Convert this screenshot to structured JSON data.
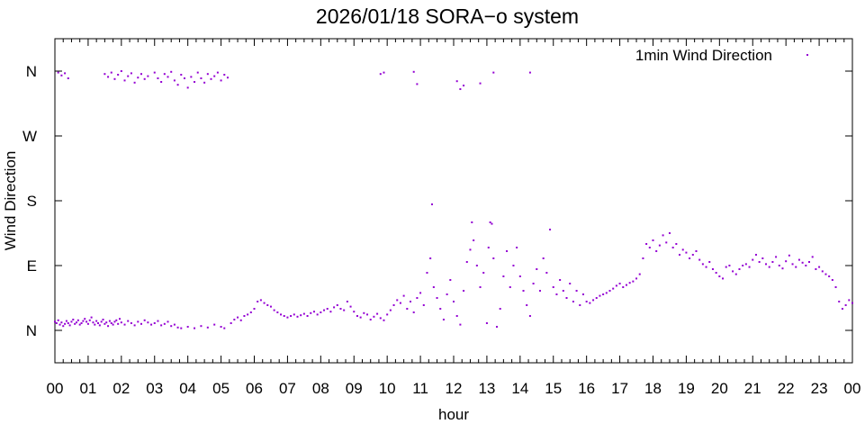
{
  "chart_data": {
    "type": "scatter",
    "title": "2026/01/18 SORA−o system",
    "xlabel": "hour",
    "ylabel": "Wind Direction",
    "xlim": [
      0,
      24
    ],
    "ylim": [
      -45,
      405
    ],
    "x_ticks": [
      0,
      1,
      2,
      3,
      4,
      5,
      6,
      7,
      8,
      9,
      10,
      11,
      12,
      13,
      14,
      15,
      16,
      17,
      18,
      19,
      20,
      21,
      22,
      23,
      24
    ],
    "x_tick_labels": [
      "00",
      "01",
      "02",
      "03",
      "04",
      "05",
      "06",
      "07",
      "08",
      "09",
      "10",
      "11",
      "12",
      "13",
      "14",
      "15",
      "16",
      "17",
      "18",
      "19",
      "20",
      "21",
      "22",
      "23",
      "00"
    ],
    "y_ticks": [
      0,
      90,
      180,
      270,
      360
    ],
    "y_tick_labels": [
      "N",
      "E",
      "S",
      "W",
      "N"
    ],
    "grid": false,
    "legend_position": "top-right",
    "point_color": "#9400d3",
    "series": [
      {
        "name": "1min Wind Direction",
        "points": [
          [
            0.0,
            12
          ],
          [
            0.05,
            10
          ],
          [
            0.1,
            14
          ],
          [
            0.15,
            8
          ],
          [
            0.2,
            11
          ],
          [
            0.25,
            6
          ],
          [
            0.3,
            9
          ],
          [
            0.35,
            13
          ],
          [
            0.4,
            10
          ],
          [
            0.45,
            7
          ],
          [
            0.5,
            12
          ],
          [
            0.55,
            15
          ],
          [
            0.6,
            9
          ],
          [
            0.65,
            11
          ],
          [
            0.7,
            14
          ],
          [
            0.75,
            8
          ],
          [
            0.8,
            10
          ],
          [
            0.85,
            13
          ],
          [
            0.9,
            16
          ],
          [
            0.95,
            12
          ],
          [
            1.0,
            9
          ],
          [
            1.05,
            14
          ],
          [
            1.1,
            18
          ],
          [
            1.15,
            11
          ],
          [
            1.2,
            8
          ],
          [
            1.25,
            13
          ],
          [
            1.3,
            10
          ],
          [
            1.35,
            7
          ],
          [
            1.4,
            12
          ],
          [
            1.45,
            15
          ],
          [
            1.5,
            9
          ],
          [
            1.55,
            11
          ],
          [
            1.6,
            6
          ],
          [
            1.65,
            13
          ],
          [
            1.7,
            10
          ],
          [
            1.75,
            8
          ],
          [
            1.8,
            12
          ],
          [
            1.85,
            14
          ],
          [
            1.9,
            9
          ],
          [
            1.95,
            16
          ],
          [
            2.0,
            11
          ],
          [
            2.1,
            8
          ],
          [
            2.2,
            13
          ],
          [
            2.3,
            10
          ],
          [
            2.4,
            7
          ],
          [
            2.5,
            12
          ],
          [
            2.6,
            9
          ],
          [
            2.7,
            14
          ],
          [
            2.8,
            11
          ],
          [
            2.9,
            8
          ],
          [
            3.0,
            10
          ],
          [
            3.1,
            13
          ],
          [
            3.2,
            7
          ],
          [
            3.3,
            9
          ],
          [
            3.4,
            12
          ],
          [
            3.5,
            6
          ],
          [
            3.6,
            8
          ],
          [
            3.7,
            4
          ],
          [
            3.8,
            3
          ],
          [
            4.0,
            5
          ],
          [
            4.2,
            3
          ],
          [
            4.4,
            6
          ],
          [
            4.6,
            4
          ],
          [
            4.8,
            8
          ],
          [
            5.0,
            5
          ],
          [
            5.1,
            3
          ],
          [
            0.1,
            358
          ],
          [
            0.2,
            354
          ],
          [
            0.3,
            357
          ],
          [
            0.4,
            350
          ],
          [
            1.5,
            356
          ],
          [
            1.6,
            352
          ],
          [
            1.7,
            358
          ],
          [
            1.8,
            349
          ],
          [
            1.9,
            355
          ],
          [
            2.0,
            360
          ],
          [
            2.1,
            347
          ],
          [
            2.2,
            353
          ],
          [
            2.3,
            357
          ],
          [
            2.4,
            344
          ],
          [
            2.5,
            351
          ],
          [
            2.6,
            356
          ],
          [
            2.7,
            349
          ],
          [
            2.8,
            353
          ],
          [
            3.0,
            358
          ],
          [
            3.1,
            350
          ],
          [
            3.2,
            345
          ],
          [
            3.3,
            356
          ],
          [
            3.4,
            352
          ],
          [
            3.5,
            359
          ],
          [
            3.6,
            347
          ],
          [
            3.7,
            341
          ],
          [
            3.8,
            355
          ],
          [
            3.9,
            350
          ],
          [
            4.0,
            337
          ],
          [
            4.1,
            352
          ],
          [
            4.2,
            345
          ],
          [
            4.3,
            358
          ],
          [
            4.4,
            350
          ],
          [
            4.5,
            344
          ],
          [
            4.6,
            356
          ],
          [
            4.7,
            349
          ],
          [
            4.8,
            353
          ],
          [
            4.9,
            358
          ],
          [
            5.0,
            347
          ],
          [
            5.1,
            355
          ],
          [
            5.2,
            351
          ],
          [
            9.8,
            356
          ],
          [
            9.9,
            358
          ],
          [
            10.8,
            359
          ],
          [
            10.9,
            342
          ],
          [
            12.1,
            346
          ],
          [
            12.2,
            335
          ],
          [
            12.3,
            340
          ],
          [
            12.8,
            343
          ],
          [
            13.2,
            358
          ],
          [
            14.3,
            358
          ],
          [
            5.3,
            10
          ],
          [
            5.4,
            15
          ],
          [
            5.5,
            18
          ],
          [
            5.6,
            14
          ],
          [
            5.7,
            20
          ],
          [
            5.8,
            22
          ],
          [
            5.9,
            25
          ],
          [
            6.0,
            30
          ],
          [
            6.1,
            40
          ],
          [
            6.2,
            42
          ],
          [
            6.3,
            38
          ],
          [
            6.4,
            35
          ],
          [
            6.5,
            33
          ],
          [
            6.6,
            28
          ],
          [
            6.7,
            25
          ],
          [
            6.8,
            22
          ],
          [
            6.9,
            20
          ],
          [
            7.0,
            18
          ],
          [
            7.1,
            20
          ],
          [
            7.2,
            22
          ],
          [
            7.3,
            19
          ],
          [
            7.4,
            21
          ],
          [
            7.5,
            23
          ],
          [
            7.6,
            20
          ],
          [
            7.7,
            24
          ],
          [
            7.8,
            26
          ],
          [
            7.9,
            22
          ],
          [
            8.0,
            25
          ],
          [
            8.1,
            28
          ],
          [
            8.2,
            30
          ],
          [
            8.3,
            26
          ],
          [
            8.4,
            32
          ],
          [
            8.5,
            35
          ],
          [
            8.6,
            30
          ],
          [
            8.7,
            28
          ],
          [
            8.8,
            40
          ],
          [
            8.9,
            33
          ],
          [
            9.0,
            26
          ],
          [
            9.1,
            20
          ],
          [
            9.2,
            18
          ],
          [
            9.3,
            24
          ],
          [
            9.4,
            22
          ],
          [
            9.5,
            15
          ],
          [
            9.6,
            19
          ],
          [
            9.7,
            23
          ],
          [
            9.8,
            17
          ],
          [
            9.9,
            14
          ],
          [
            10.0,
            22
          ],
          [
            10.1,
            28
          ],
          [
            10.2,
            35
          ],
          [
            10.3,
            42
          ],
          [
            10.4,
            38
          ],
          [
            10.5,
            48
          ],
          [
            10.6,
            30
          ],
          [
            10.7,
            40
          ],
          [
            10.8,
            25
          ],
          [
            10.9,
            45
          ],
          [
            11.0,
            52
          ],
          [
            11.1,
            35
          ],
          [
            11.2,
            80
          ],
          [
            11.3,
            100
          ],
          [
            11.35,
            175
          ],
          [
            11.4,
            60
          ],
          [
            11.5,
            45
          ],
          [
            11.6,
            30
          ],
          [
            11.7,
            15
          ],
          [
            11.8,
            50
          ],
          [
            11.9,
            70
          ],
          [
            12.0,
            40
          ],
          [
            12.1,
            20
          ],
          [
            12.2,
            8
          ],
          [
            12.3,
            55
          ],
          [
            12.4,
            95
          ],
          [
            12.5,
            112
          ],
          [
            12.55,
            150
          ],
          [
            12.6,
            125
          ],
          [
            12.7,
            90
          ],
          [
            12.8,
            60
          ],
          [
            12.9,
            80
          ],
          [
            13.0,
            10
          ],
          [
            13.05,
            115
          ],
          [
            13.1,
            150
          ],
          [
            13.15,
            148
          ],
          [
            13.2,
            100
          ],
          [
            13.3,
            5
          ],
          [
            13.4,
            30
          ],
          [
            13.5,
            75
          ],
          [
            13.6,
            110
          ],
          [
            13.7,
            60
          ],
          [
            13.8,
            90
          ],
          [
            13.9,
            115
          ],
          [
            14.0,
            75
          ],
          [
            14.1,
            55
          ],
          [
            14.2,
            35
          ],
          [
            14.3,
            20
          ],
          [
            14.4,
            65
          ],
          [
            14.5,
            85
          ],
          [
            14.6,
            55
          ],
          [
            14.7,
            100
          ],
          [
            14.8,
            80
          ],
          [
            14.9,
            140
          ],
          [
            15.0,
            60
          ],
          [
            15.1,
            50
          ],
          [
            15.2,
            70
          ],
          [
            15.3,
            55
          ],
          [
            15.4,
            45
          ],
          [
            15.5,
            65
          ],
          [
            15.6,
            40
          ],
          [
            15.7,
            55
          ],
          [
            15.8,
            35
          ],
          [
            15.9,
            50
          ],
          [
            16.0,
            40
          ],
          [
            16.1,
            38
          ],
          [
            16.2,
            42
          ],
          [
            16.3,
            45
          ],
          [
            16.4,
            48
          ],
          [
            16.5,
            50
          ],
          [
            16.6,
            52
          ],
          [
            16.7,
            55
          ],
          [
            16.8,
            58
          ],
          [
            16.9,
            62
          ],
          [
            17.0,
            65
          ],
          [
            17.1,
            60
          ],
          [
            17.2,
            63
          ],
          [
            17.3,
            66
          ],
          [
            17.4,
            68
          ],
          [
            17.5,
            72
          ],
          [
            17.6,
            78
          ],
          [
            17.7,
            100
          ],
          [
            17.8,
            120
          ],
          [
            17.9,
            115
          ],
          [
            18.0,
            125
          ],
          [
            18.1,
            110
          ],
          [
            18.2,
            118
          ],
          [
            18.3,
            132
          ],
          [
            18.4,
            122
          ],
          [
            18.5,
            135
          ],
          [
            18.6,
            115
          ],
          [
            18.7,
            120
          ],
          [
            18.8,
            105
          ],
          [
            18.9,
            112
          ],
          [
            19.0,
            108
          ],
          [
            19.1,
            100
          ],
          [
            19.2,
            105
          ],
          [
            19.3,
            110
          ],
          [
            19.4,
            98
          ],
          [
            19.5,
            92
          ],
          [
            19.6,
            88
          ],
          [
            19.7,
            95
          ],
          [
            19.8,
            85
          ],
          [
            19.9,
            80
          ],
          [
            20.0,
            75
          ],
          [
            20.1,
            72
          ],
          [
            20.2,
            88
          ],
          [
            20.3,
            90
          ],
          [
            20.4,
            82
          ],
          [
            20.5,
            78
          ],
          [
            20.6,
            85
          ],
          [
            20.7,
            90
          ],
          [
            20.8,
            92
          ],
          [
            20.9,
            88
          ],
          [
            21.0,
            98
          ],
          [
            21.1,
            105
          ],
          [
            21.2,
            95
          ],
          [
            21.3,
            100
          ],
          [
            21.4,
            92
          ],
          [
            21.5,
            88
          ],
          [
            21.6,
            95
          ],
          [
            21.7,
            102
          ],
          [
            21.8,
            90
          ],
          [
            21.9,
            86
          ],
          [
            22.0,
            96
          ],
          [
            22.1,
            104
          ],
          [
            22.2,
            92
          ],
          [
            22.3,
            88
          ],
          [
            22.4,
            98
          ],
          [
            22.5,
            94
          ],
          [
            22.6,
            90
          ],
          [
            22.7,
            95
          ],
          [
            22.8,
            102
          ],
          [
            22.9,
            85
          ],
          [
            23.0,
            88
          ],
          [
            23.1,
            82
          ],
          [
            23.2,
            78
          ],
          [
            23.3,
            75
          ],
          [
            23.4,
            70
          ],
          [
            23.5,
            60
          ],
          [
            23.6,
            40
          ],
          [
            23.7,
            30
          ],
          [
            23.8,
            35
          ],
          [
            23.9,
            42
          ],
          [
            24.0,
            38
          ]
        ]
      }
    ]
  }
}
